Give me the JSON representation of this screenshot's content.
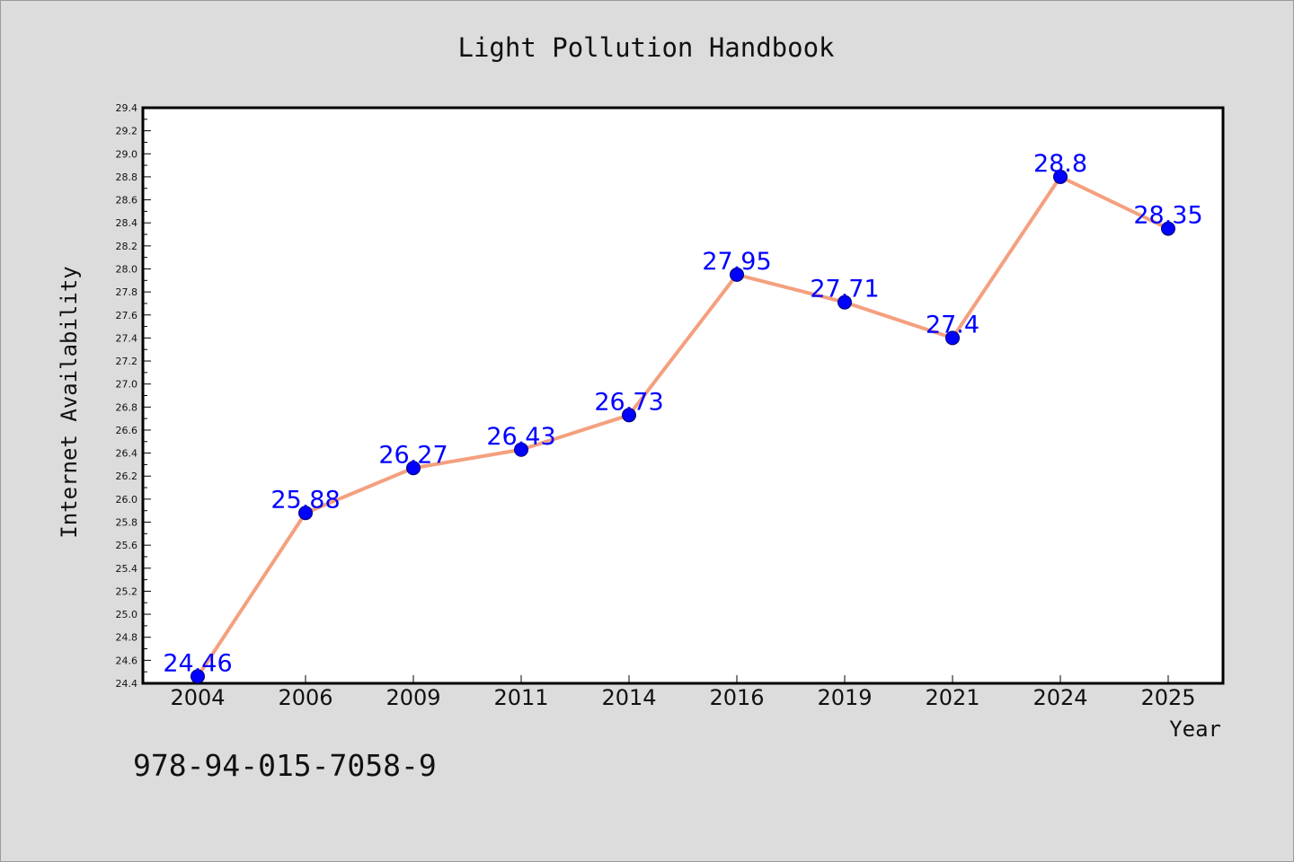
{
  "chart_data": {
    "type": "line",
    "title": "Light Pollution Handbook",
    "xlabel": "Year",
    "ylabel": "Internet Availability",
    "categories": [
      "2004",
      "2006",
      "2009",
      "2011",
      "2014",
      "2016",
      "2019",
      "2021",
      "2024",
      "2025"
    ],
    "series": [
      {
        "values": [
          24.46,
          25.88,
          26.27,
          26.43,
          26.73,
          27.95,
          27.71,
          27.4,
          28.8,
          28.35
        ],
        "data_labels": [
          "24.46",
          "25.88",
          "26.27",
          "26.43",
          "26.73",
          "27.95",
          "27.71",
          "27.4",
          "28.8",
          "28.35"
        ],
        "line_color": "#f4a07e",
        "marker_color": "#0000ff"
      }
    ],
    "ylim": [
      24.4,
      29.4
    ],
    "y_ticks": [
      "24.4",
      "24.6",
      "24.8",
      "25.0",
      "25.2",
      "25.4",
      "25.6",
      "25.8",
      "26.0",
      "26.2",
      "26.4",
      "26.6",
      "26.8",
      "27.0",
      "27.2",
      "27.4",
      "27.6",
      "27.8",
      "28.0",
      "28.2",
      "28.4",
      "28.6",
      "28.8",
      "29.0",
      "29.2",
      "29.4"
    ],
    "grid": false,
    "legend": "none"
  },
  "footer": {
    "isbn": "978-94-015-7058-9"
  },
  "colors": {
    "background": "#dcdcdc",
    "plot_background": "#ffffff",
    "line": "#f4a07e",
    "marker": "#0000ff",
    "data_label": "#0000ff"
  }
}
